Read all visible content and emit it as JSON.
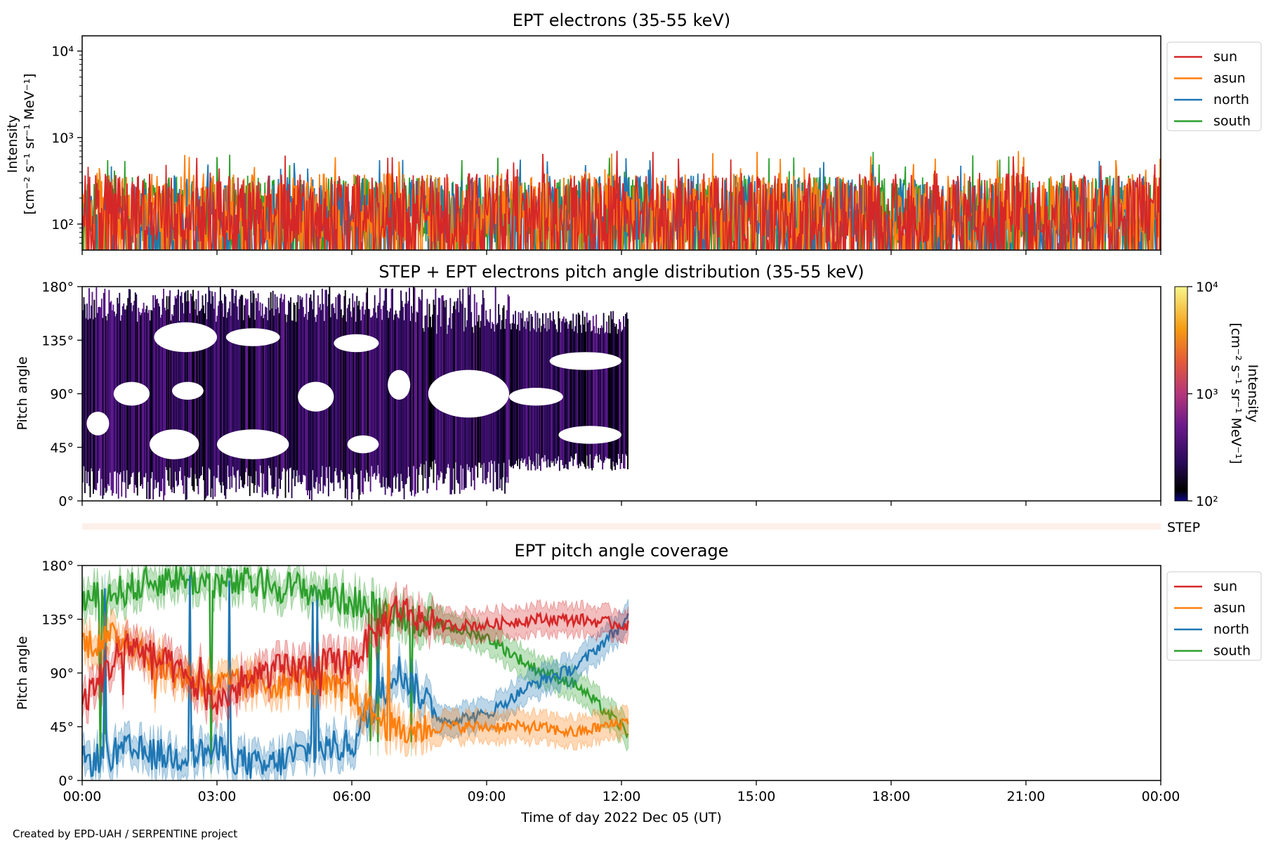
{
  "figure": {
    "credit": "Created by EPD-UAH / SERPENTINE project",
    "xlabel": "Time of day 2022 Dec 05 (UT)",
    "xtick_labels": [
      "00:00",
      "03:00",
      "06:00",
      "09:00",
      "12:00",
      "15:00",
      "18:00",
      "21:00",
      "00:00"
    ],
    "step_label": "STEP"
  },
  "colors": {
    "sun": "#d62728",
    "asun": "#ff7f0e",
    "north": "#1f77b4",
    "south": "#2ca02c"
  },
  "chart_data": [
    {
      "type": "line",
      "title": "EPT electrons (35-55 keV)",
      "ylabel_line1": "Intensity",
      "ylabel_line2": "[cm⁻² s⁻¹ sr⁻¹ MeV⁻¹]",
      "yscale": "log",
      "ylim": [
        50,
        15000
      ],
      "yticks": [
        100,
        1000,
        10000
      ],
      "ytick_labels": [
        "10²",
        "10³",
        "10⁴"
      ],
      "xlim_hours": [
        0,
        24
      ],
      "legend": [
        "sun",
        "asun",
        "north",
        "south"
      ],
      "legend_position": "upper right, outside",
      "series": [
        {
          "name": "sun",
          "color": "#d62728",
          "typical": 150,
          "peak": 750,
          "min": 50
        },
        {
          "name": "asun",
          "color": "#ff7f0e",
          "typical": 150,
          "peak": 700,
          "min": 50
        },
        {
          "name": "north",
          "color": "#1f77b4",
          "typical": 140,
          "peak": 600,
          "min": 50
        },
        {
          "name": "south",
          "color": "#2ca02c",
          "typical": 140,
          "peak": 700,
          "min": 50
        }
      ],
      "note": "noisy 1-min intensities across full day"
    },
    {
      "type": "heatmap",
      "title": "STEP + EPT electrons pitch angle distribution (35-55 keV)",
      "ylabel": "Pitch angle",
      "ylim": [
        0,
        180
      ],
      "ytick_labels": [
        "0°",
        "45°",
        "90°",
        "135°",
        "180°"
      ],
      "xlim_hours": [
        0,
        24
      ],
      "data_end_hour": 12.15,
      "colorbar": {
        "scale": "log",
        "range": [
          100,
          10000
        ],
        "tick_labels": [
          "10²",
          "10³",
          "10⁴"
        ],
        "label_line1": "Intensity",
        "label_line2": "[cm⁻² s⁻¹ sr⁻¹ MeV⁻¹]",
        "colormap": "plasma-like"
      }
    },
    {
      "type": "line",
      "title": "EPT pitch angle coverage",
      "ylabel": "Pitch angle",
      "ylim": [
        0,
        180
      ],
      "ytick_labels": [
        "0°",
        "45°",
        "90°",
        "135°",
        "180°"
      ],
      "xlim_hours": [
        0,
        24
      ],
      "legend": [
        "sun",
        "asun",
        "north",
        "south"
      ],
      "legend_position": "upper right, outside",
      "x_hours": [
        0,
        1,
        2,
        3,
        4,
        5,
        6,
        7,
        8,
        9,
        10,
        11,
        12.15
      ],
      "series": [
        {
          "name": "sun",
          "color": "#d62728",
          "values": [
            65,
            115,
            95,
            65,
            90,
            95,
            100,
            145,
            130,
            130,
            135,
            135,
            130
          ]
        },
        {
          "name": "asun",
          "color": "#ff7f0e",
          "values": [
            115,
            120,
            90,
            80,
            80,
            85,
            70,
            40,
            45,
            45,
            45,
            40,
            50
          ]
        },
        {
          "name": "north",
          "color": "#1f77b4",
          "values": [
            15,
            25,
            20,
            25,
            10,
            25,
            30,
            95,
            50,
            55,
            80,
            95,
            135
          ]
        },
        {
          "name": "south",
          "color": "#2ca02c",
          "values": [
            150,
            160,
            170,
            165,
            165,
            160,
            150,
            140,
            130,
            120,
            95,
            80,
            40
          ]
        }
      ],
      "band_halfwidth_deg": 12
    }
  ]
}
